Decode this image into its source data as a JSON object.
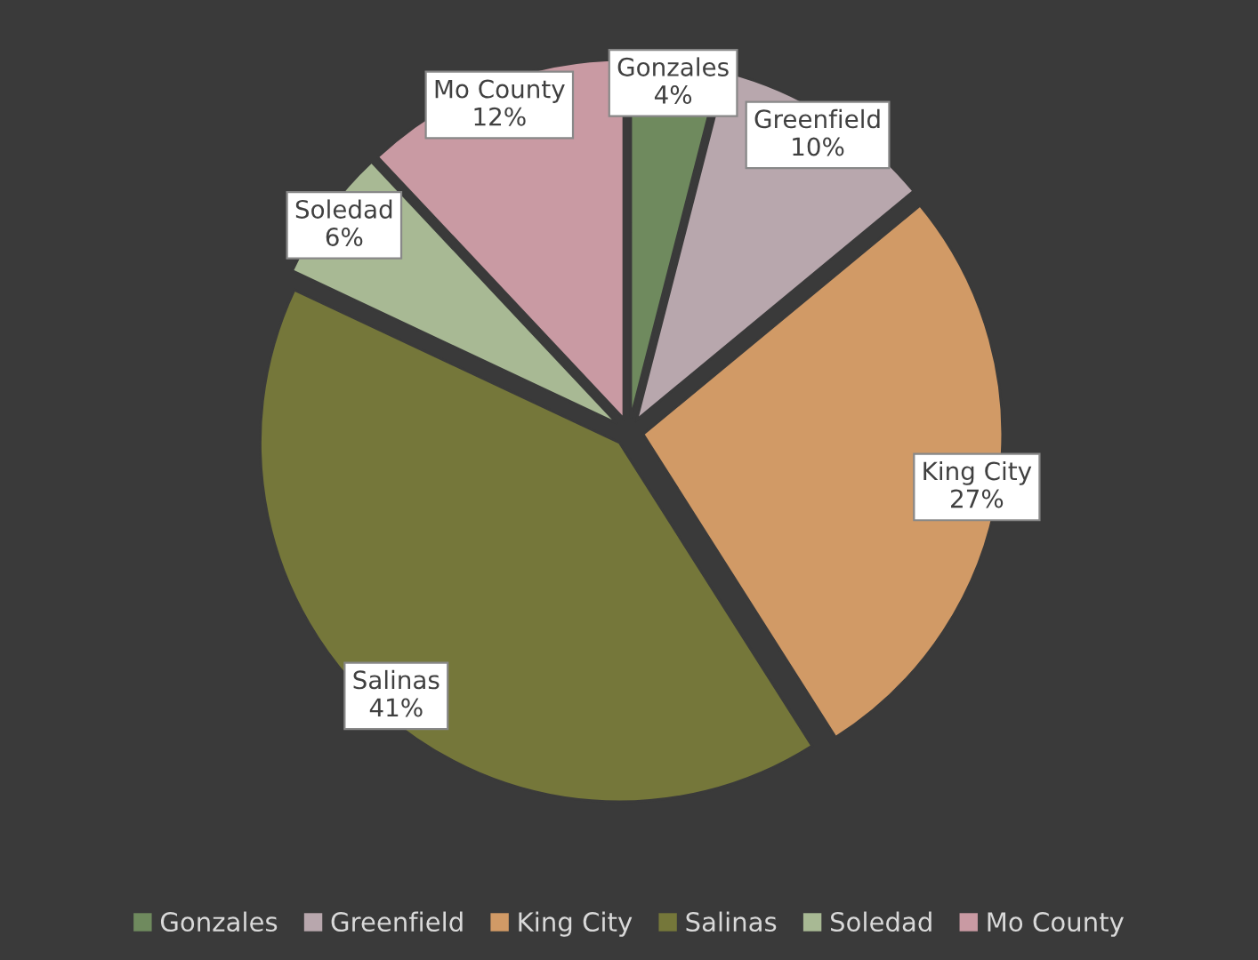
{
  "chart_data": {
    "type": "pie",
    "categories": [
      "Gonzales",
      "Greenfield",
      "King City",
      "Salinas",
      "Soledad",
      "Mo County"
    ],
    "values": [
      4,
      10,
      27,
      41,
      6,
      12
    ],
    "value_labels": [
      "4%",
      "10%",
      "27%",
      "41%",
      "6%",
      "12%"
    ],
    "colors": [
      "#6f8a5e",
      "#b8a7ad",
      "#d19a66",
      "#75773a",
      "#a8b994",
      "#c99aa3"
    ],
    "legend": "bottom"
  }
}
